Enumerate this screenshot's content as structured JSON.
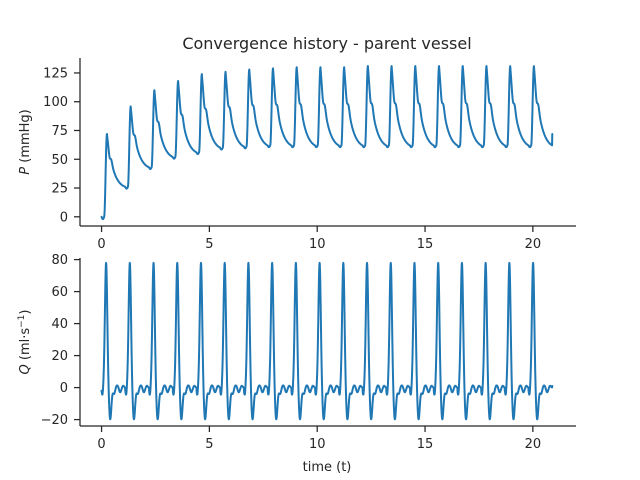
{
  "figure": {
    "title": "Convergence history - parent vessel",
    "xlabel": "time (t)"
  },
  "chart_data": [
    {
      "type": "line",
      "ylabel_var": "P",
      "ylabel_units": " (mmHg)",
      "xlim": [
        -1.0,
        22.0
      ],
      "ylim": [
        -8,
        138
      ],
      "xticks": [
        0,
        5,
        10,
        15,
        20
      ],
      "yticks": [
        0,
        25,
        50,
        75,
        100,
        125
      ],
      "xticklabels_visible": true,
      "grid": false,
      "line_color": "#1f77b4",
      "period": 1.1,
      "t_end": 20.9,
      "series": [
        {
          "name": "P",
          "systolic_peaks": [
            72,
            96,
            110,
            118,
            124,
            126,
            128,
            129,
            130,
            130,
            130,
            131,
            131,
            131,
            131,
            131,
            131,
            131,
            131
          ],
          "diastolic_minima": [
            26,
            43,
            52,
            56,
            60,
            61,
            62,
            62,
            62,
            62,
            62,
            62,
            62,
            62,
            62,
            62,
            62,
            62,
            62
          ],
          "end_value": 72
        }
      ]
    },
    {
      "type": "line",
      "ylabel_var": "Q",
      "ylabel_units": " (ml·s",
      "ylabel_exp": "−1",
      "ylabel_close": ")",
      "xlim": [
        -1.0,
        22.0
      ],
      "ylim": [
        -24,
        81
      ],
      "xticks": [
        0,
        5,
        10,
        15,
        20
      ],
      "yticks": [
        -20,
        0,
        20,
        40,
        60,
        80
      ],
      "grid": false,
      "line_color": "#1f77b4",
      "period": 1.1,
      "t_end": 20.9,
      "series": [
        {
          "name": "Q",
          "peak_value": 76,
          "trough_value": -19,
          "baseline": 0,
          "end_value": 1
        }
      ]
    }
  ]
}
